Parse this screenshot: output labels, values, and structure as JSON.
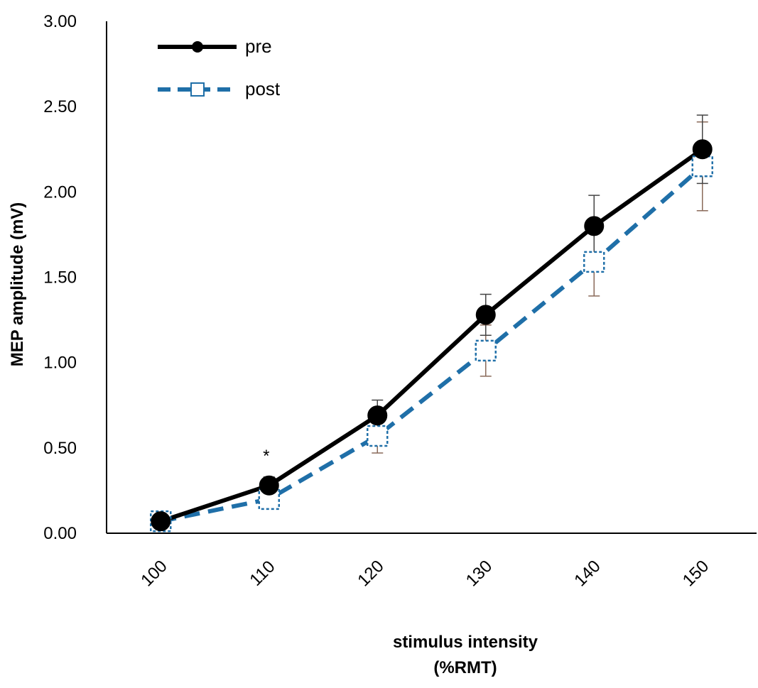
{
  "chart_data": {
    "type": "line",
    "title": "",
    "xlabel_lines": [
      "stimulus intensity",
      "(%RMT)"
    ],
    "ylabel": "MEP amplitude (mV)",
    "categories": [
      "100",
      "110",
      "120",
      "130",
      "140",
      "150"
    ],
    "ylim": [
      0,
      3
    ],
    "yticks": [
      "0.00",
      "0.50",
      "1.00",
      "1.50",
      "2.00",
      "2.50",
      "3.00"
    ],
    "grid": false,
    "legend_position": "top-left",
    "series": [
      {
        "name": "pre",
        "values": [
          0.07,
          0.28,
          0.69,
          1.28,
          1.8,
          2.25
        ],
        "error": [
          0.02,
          0.05,
          0.09,
          0.12,
          0.18,
          0.2
        ],
        "color": "#000000",
        "style": "solid",
        "marker": "filled-circle"
      },
      {
        "name": "post",
        "values": [
          0.07,
          0.2,
          0.57,
          1.07,
          1.59,
          2.15
        ],
        "error": [
          0.02,
          0.04,
          0.1,
          0.15,
          0.2,
          0.26
        ],
        "color": "#1f6fa8",
        "style": "dashed",
        "marker": "open-square"
      }
    ],
    "annotations": [
      {
        "text": "*",
        "category": "110",
        "y": 0.47
      }
    ]
  }
}
